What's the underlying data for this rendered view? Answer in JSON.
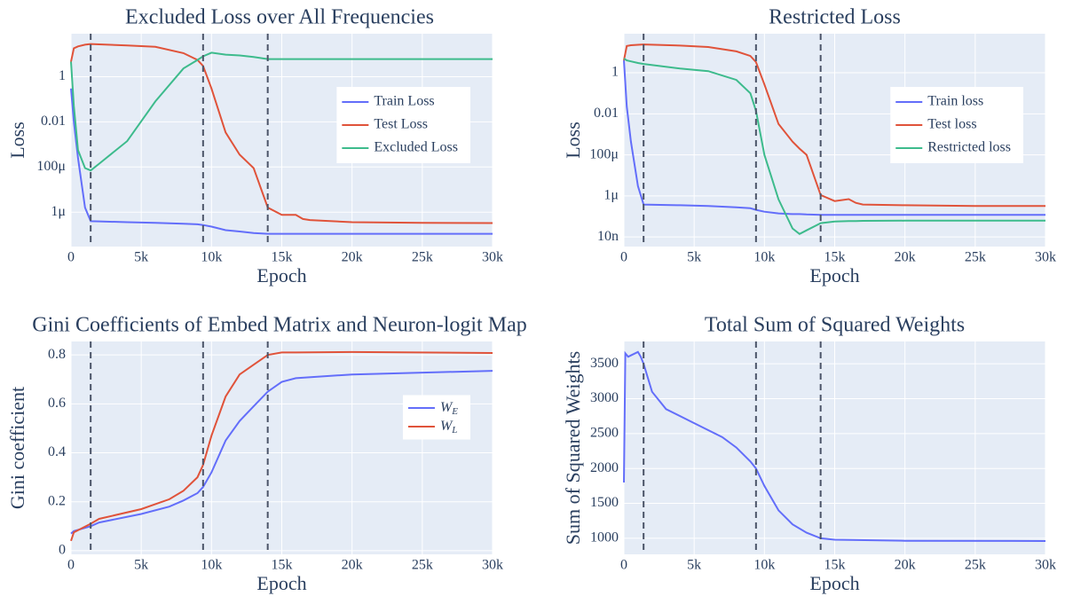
{
  "chart_data": [
    {
      "type": "line",
      "title": "Excluded Loss over All Frequencies",
      "x_label": "Epoch",
      "y_label": "Loss",
      "log_y": true,
      "grid": true,
      "legend": "right",
      "x": [
        0,
        200,
        500,
        1000,
        1400,
        2000,
        4000,
        6000,
        8000,
        9000,
        9400,
        10000,
        11000,
        12000,
        13000,
        14000,
        15000,
        16000,
        16500,
        17000,
        20000,
        25000,
        30000
      ],
      "series": [
        {
          "name": "Train Loss",
          "color": "#636efa",
          "values": [
            0.3,
            0.01,
            0.00025,
            1.6e-06,
            4e-07,
            3.9e-07,
            3.6e-07,
            3.4e-07,
            3.1e-07,
            2.9e-07,
            2.7e-07,
            2.3e-07,
            1.6e-07,
            1.4e-07,
            1.2e-07,
            1.1e-07,
            1.1e-07,
            1.1e-07,
            1.1e-07,
            1.1e-07,
            1.1e-07,
            1.1e-07,
            1.1e-07
          ]
        },
        {
          "name": "Test Loss",
          "color": "#e0533a",
          "values": [
            4.6,
            18,
            22,
            26,
            28,
            27,
            24,
            21,
            11,
            5.5,
            3,
            0.3,
            0.0034,
            0.00035,
            9e-05,
            1.6e-06,
            7.6e-07,
            7.6e-07,
            5e-07,
            4.5e-07,
            3.6e-07,
            3.4e-07,
            3.3e-07
          ]
        },
        {
          "name": "Excluded Loss",
          "color": "#3dbb8c",
          "values": [
            4.6,
            0.05,
            0.00056,
            9e-05,
            7e-05,
            0.00014,
            0.0014,
            0.08,
            2.3,
            5.5,
            8,
            11.5,
            9.5,
            8.7,
            7.5,
            6,
            6,
            6,
            6,
            6,
            6,
            6,
            6
          ]
        }
      ],
      "vlines": [
        1400,
        9400,
        14000
      ],
      "xlim": [
        0,
        30000
      ],
      "xticks": [
        0,
        {
          "value": 5000,
          "label": "5k"
        },
        {
          "value": 10000,
          "label": "10k"
        },
        {
          "value": 15000,
          "label": "15k"
        },
        {
          "value": 20000,
          "label": "20k"
        },
        {
          "value": 25000,
          "label": "25k"
        },
        {
          "value": 30000,
          "label": "30k"
        }
      ],
      "ylim": [
        3e-08,
        80
      ],
      "yticks": [
        {
          "value": 1e-06,
          "label": "1μ"
        },
        {
          "value": 0.0001,
          "label": "100μ"
        },
        0.01,
        1
      ]
    },
    {
      "type": "line",
      "title": "Restricted Loss",
      "x_label": "Epoch",
      "y_label": "Loss",
      "log_y": true,
      "grid": true,
      "legend": "right",
      "x": [
        0,
        200,
        500,
        1000,
        1400,
        4000,
        6000,
        8000,
        9000,
        9400,
        10000,
        11000,
        12000,
        12500,
        13000,
        14000,
        15000,
        16000,
        16500,
        17000,
        20000,
        25000,
        30000
      ],
      "series": [
        {
          "name": "Train loss",
          "color": "#636efa",
          "values": [
            4,
            0.023,
            0.00044,
            3e-06,
            3.8e-07,
            3.5e-07,
            3.2e-07,
            2.8e-07,
            2.5e-07,
            2.1e-07,
            1.7e-07,
            1.4e-07,
            1.3e-07,
            1.3e-07,
            1.25e-07,
            1.2e-07,
            1.2e-07,
            1.2e-07,
            1.2e-07,
            1.2e-07,
            1.2e-07,
            1.2e-07,
            1.2e-07
          ]
        },
        {
          "name": "Test loss",
          "color": "#e0533a",
          "values": [
            4,
            20,
            22,
            23,
            24,
            21,
            18,
            11,
            6.6,
            3.3,
            0.27,
            0.0032,
            0.00044,
            0.0002,
            0.0001,
            1.1e-06,
            5.6e-07,
            7e-07,
            4.6e-07,
            3.8e-07,
            3.5e-07,
            3.2e-07,
            3.2e-07
          ]
        },
        {
          "name": "Restricted loss",
          "color": "#3dbb8c",
          "values": [
            5,
            4,
            3.6,
            3,
            2.7,
            1.6,
            1.2,
            0.45,
            0.1,
            0.014,
            0.0001,
            6.8e-07,
            2.6e-08,
            1.4e-08,
            2.1e-08,
            4.7e-08,
            5.7e-08,
            6e-08,
            6e-08,
            6.1e-08,
            6.2e-08,
            6.3e-08,
            6.3e-08
          ]
        }
      ],
      "vlines": [
        1400,
        9400,
        14000
      ],
      "xlim": [
        0,
        30000
      ],
      "xticks": [
        0,
        {
          "value": 5000,
          "label": "5k"
        },
        {
          "value": 10000,
          "label": "10k"
        },
        {
          "value": 15000,
          "label": "15k"
        },
        {
          "value": 20000,
          "label": "20k"
        },
        {
          "value": 25000,
          "label": "25k"
        },
        {
          "value": 30000,
          "label": "30k"
        }
      ],
      "ylim": [
        3.4e-09,
        80
      ],
      "yticks": [
        {
          "value": 1e-08,
          "label": "10n"
        },
        {
          "value": 1e-06,
          "label": "1μ"
        },
        {
          "value": 0.0001,
          "label": "100μ"
        },
        0.01,
        1
      ]
    },
    {
      "type": "line",
      "title": "Gini Coefficients of Embed Matrix and Neuron-logit Map",
      "x_label": "Epoch",
      "y_label": "Gini coefficient",
      "grid": true,
      "legend": "right",
      "x": [
        0,
        200,
        1400,
        2000,
        5000,
        7000,
        8000,
        9000,
        9400,
        10000,
        11000,
        12000,
        13000,
        14000,
        15000,
        16000,
        20000,
        30000
      ],
      "series": [
        {
          "name": "W_E",
          "color": "#636efa",
          "values": [
            0.07,
            0.08,
            0.1,
            0.115,
            0.15,
            0.18,
            0.205,
            0.235,
            0.26,
            0.32,
            0.45,
            0.53,
            0.59,
            0.65,
            0.69,
            0.705,
            0.72,
            0.735
          ]
        },
        {
          "name": "W_L",
          "color": "#e0533a",
          "values": [
            0.04,
            0.075,
            0.11,
            0.13,
            0.17,
            0.21,
            0.245,
            0.3,
            0.35,
            0.47,
            0.63,
            0.72,
            0.76,
            0.8,
            0.81,
            0.81,
            0.812,
            0.808
          ]
        }
      ],
      "vlines": [
        1400,
        9400,
        14000
      ],
      "xlim": [
        0,
        30000
      ],
      "xticks": [
        0,
        {
          "value": 5000,
          "label": "5k"
        },
        {
          "value": 10000,
          "label": "10k"
        },
        {
          "value": 15000,
          "label": "15k"
        },
        {
          "value": 20000,
          "label": "20k"
        },
        {
          "value": 25000,
          "label": "25k"
        },
        {
          "value": 30000,
          "label": "30k"
        }
      ],
      "ylim": [
        -0.015,
        0.855
      ],
      "yticks": [
        0,
        0.2,
        0.4,
        0.6,
        0.8
      ]
    },
    {
      "type": "line",
      "title": "Total Sum of Squared Weights",
      "x_label": "Epoch",
      "y_label": "Sum of Squared Weights",
      "grid": true,
      "color": "#636efa",
      "x": [
        0,
        100,
        300,
        500,
        1000,
        1200,
        1400,
        2000,
        3000,
        5000,
        7000,
        8000,
        9000,
        9400,
        10000,
        11000,
        12000,
        13000,
        14000,
        15000,
        20000,
        30000
      ],
      "values": [
        1800,
        3650,
        3600,
        3620,
        3670,
        3600,
        3500,
        3100,
        2850,
        2650,
        2450,
        2300,
        2100,
        2000,
        1750,
        1400,
        1200,
        1080,
        1000,
        980,
        965,
        960
      ],
      "vlines": [
        1400,
        9400,
        14000
      ],
      "xlim": [
        0,
        30000
      ],
      "xticks": [
        0,
        {
          "value": 5000,
          "label": "5k"
        },
        {
          "value": 10000,
          "label": "10k"
        },
        {
          "value": 15000,
          "label": "15k"
        },
        {
          "value": 20000,
          "label": "20k"
        },
        {
          "value": 25000,
          "label": "25k"
        },
        {
          "value": 30000,
          "label": "30k"
        }
      ],
      "ylim": [
        770,
        3820
      ],
      "yticks": [
        1000,
        1500,
        2000,
        2500,
        3000,
        3500
      ]
    }
  ]
}
